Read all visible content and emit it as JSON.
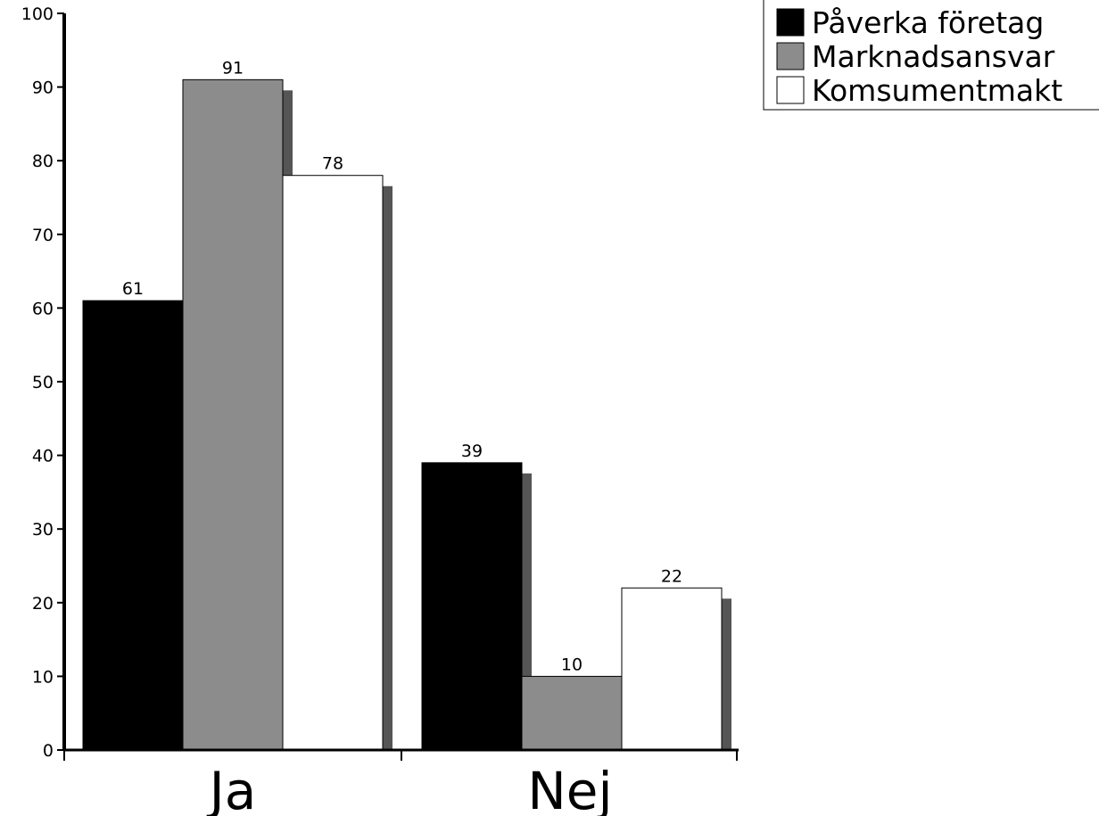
{
  "chart_data": {
    "type": "bar",
    "categories": [
      "Ja",
      "Nej"
    ],
    "series": [
      {
        "name": "Påverka företag",
        "values": [
          61,
          39
        ],
        "color": "#000000"
      },
      {
        "name": "Marknadsansvar",
        "values": [
          91,
          10
        ],
        "color": "#8c8c8c"
      },
      {
        "name": "Komsumentmakt",
        "values": [
          78,
          22
        ],
        "color": "#ffffff"
      }
    ],
    "title": "",
    "xlabel": "",
    "ylabel": "",
    "ylim": [
      0,
      100
    ],
    "yticks": [
      "0",
      "10",
      "20",
      "30",
      "40",
      "50",
      "60",
      "70",
      "80",
      "90",
      "100"
    ],
    "value_labels": [
      [
        "61",
        "39"
      ],
      [
        "91",
        "10"
      ],
      [
        "78",
        "22"
      ]
    ],
    "grid": false,
    "legend_position": "top-right",
    "shadow_color": "#555555"
  }
}
